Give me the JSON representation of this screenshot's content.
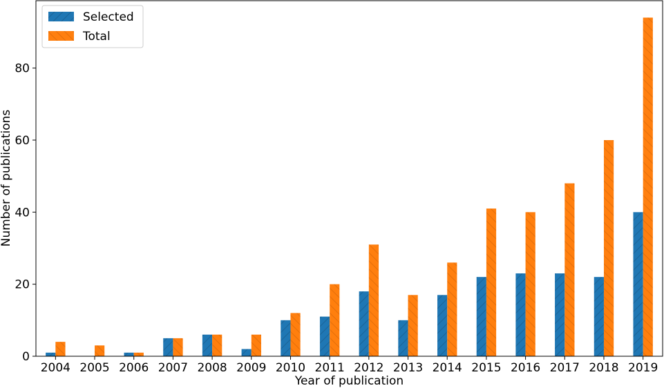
{
  "chart_data": {
    "type": "bar",
    "xlabel": "Year of publication",
    "ylabel": "Number of publications",
    "categories": [
      "2004",
      "2005",
      "2006",
      "2007",
      "2008",
      "2009",
      "2010",
      "2011",
      "2012",
      "2013",
      "2014",
      "2015",
      "2016",
      "2017",
      "2018",
      "2019"
    ],
    "series": [
      {
        "name": "Selected",
        "color": "#1f77b4",
        "values": [
          1,
          0,
          1,
          5,
          6,
          2,
          10,
          11,
          18,
          10,
          17,
          22,
          23,
          23,
          22,
          40
        ]
      },
      {
        "name": "Total",
        "color": "#ff7f0e",
        "values": [
          4,
          3,
          1,
          5,
          6,
          6,
          12,
          20,
          31,
          17,
          26,
          41,
          40,
          48,
          60,
          94
        ]
      }
    ],
    "ylim": [
      0,
      98.7
    ],
    "yticks": [
      0,
      20,
      40,
      60,
      80
    ],
    "grid": false,
    "legend_position": "top-left",
    "bar_hatch": "diagonal"
  }
}
